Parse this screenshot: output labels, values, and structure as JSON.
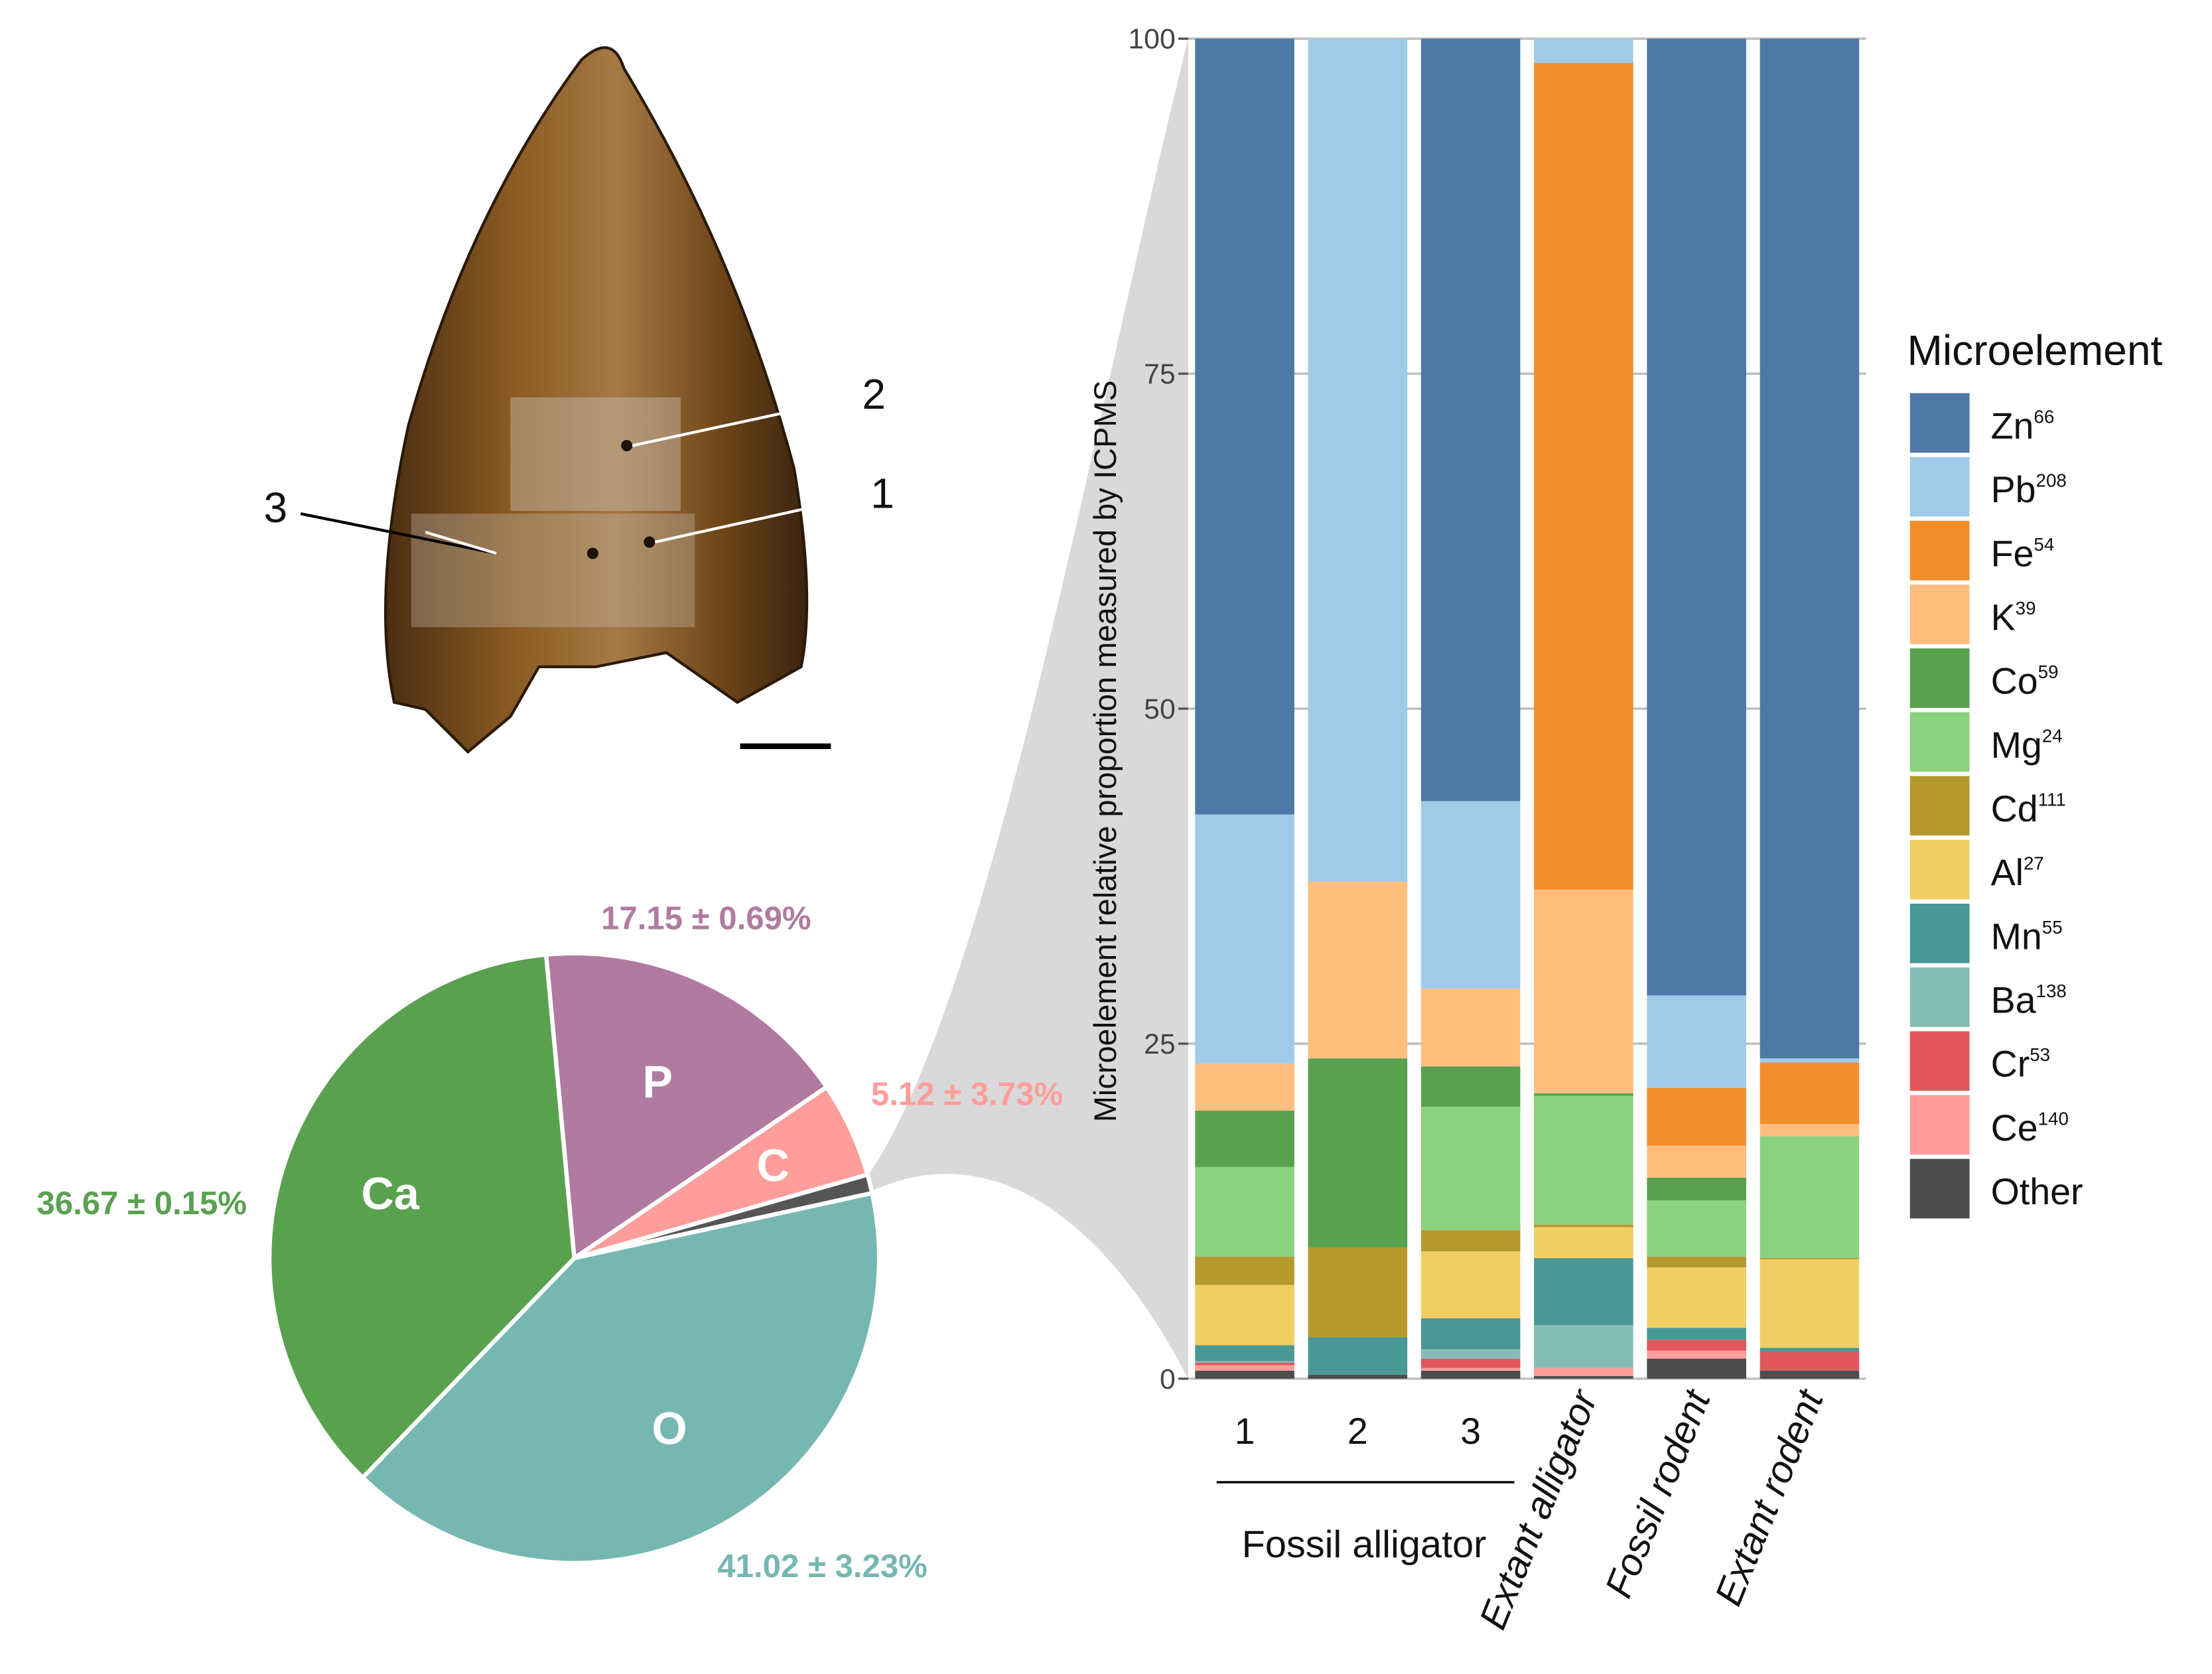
{
  "tooth": {
    "sample_labels": [
      "2",
      "1",
      "3"
    ]
  },
  "chart_data": [
    {
      "type": "pie",
      "categories": [
        "P",
        "C",
        null,
        "O",
        "Ca"
      ],
      "values": [
        17.15,
        5.12,
        1,
        41.02,
        36.67
      ],
      "value_labels": [
        "17.15 ± 0.69%",
        "5.12 ± 3.73%",
        null,
        "41.02 ± 3.23%",
        "36.67 ± 0.15%"
      ],
      "colors": [
        "#b07aa1",
        "#ff9d9a",
        "#555555",
        "#76b7b2",
        "#59a14f"
      ]
    },
    {
      "type": "bar",
      "stacked": true,
      "ylabel": "Microelement relative proportion measured by ICPMS",
      "categories": [
        "1",
        "2",
        "3",
        "Extant alligator",
        "Fossil rodent",
        "Extant rodent"
      ],
      "group_label": "Fossil alligator",
      "ylim": [
        0,
        100
      ],
      "yticks": [
        0,
        25,
        50,
        75,
        100
      ],
      "grid": true,
      "legend_title": "Microelement",
      "legend_position": "right",
      "series": [
        {
          "name": "Zn",
          "mass": 66,
          "color": "#4e79a7",
          "values": [
            57.9,
            0,
            56.9,
            0,
            71.4,
            76.1
          ]
        },
        {
          "name": "Pb",
          "mass": 208,
          "color": "#a0cbe8",
          "values": [
            18.6,
            62.9,
            14.0,
            1.8,
            6.9,
            0.3
          ]
        },
        {
          "name": "Fe",
          "mass": 54,
          "color": "#f28e2b",
          "values": [
            0,
            0,
            0,
            61.7,
            4.3,
            4.6
          ]
        },
        {
          "name": "K",
          "mass": 39,
          "color": "#ffbe7d",
          "values": [
            3.5,
            13.2,
            5.8,
            15.2,
            2.4,
            0.9
          ]
        },
        {
          "name": "Co",
          "mass": 59,
          "color": "#59a14f",
          "values": [
            4.2,
            14.1,
            3.0,
            0.2,
            1.7,
            0
          ]
        },
        {
          "name": "Mg",
          "mass": 24,
          "color": "#8cd17d",
          "values": [
            6.7,
            0,
            9.2,
            9.6,
            4.2,
            9.1
          ]
        },
        {
          "name": "Cd",
          "mass": 111,
          "color": "#b6992d",
          "values": [
            2.1,
            6.7,
            1.6,
            0.2,
            0.8,
            0.1
          ]
        },
        {
          "name": "Al",
          "mass": 27,
          "color": "#f1ce63",
          "values": [
            4.5,
            0,
            5.0,
            2.3,
            4.5,
            6.6
          ]
        },
        {
          "name": "Mn",
          "mass": 55,
          "color": "#499894",
          "values": [
            1.2,
            2.8,
            2.3,
            5.0,
            0.9,
            0.3
          ]
        },
        {
          "name": "Ba",
          "mass": 138,
          "color": "#86bcb6",
          "values": [
            0.1,
            0,
            0.7,
            3.2,
            0,
            0
          ]
        },
        {
          "name": "Cr",
          "mass": 53,
          "color": "#e15759",
          "values": [
            0.2,
            0,
            0.7,
            0,
            0.8,
            1.4
          ]
        },
        {
          "name": "Ce",
          "mass": 140,
          "color": "#ff9d9a",
          "values": [
            0.4,
            0,
            0.2,
            0.6,
            0.6,
            0
          ]
        },
        {
          "name": "Other",
          "color": "#4d4d4d",
          "values": [
            0.6,
            0.3,
            0.6,
            0.2,
            1.5,
            0.6
          ]
        }
      ]
    }
  ]
}
